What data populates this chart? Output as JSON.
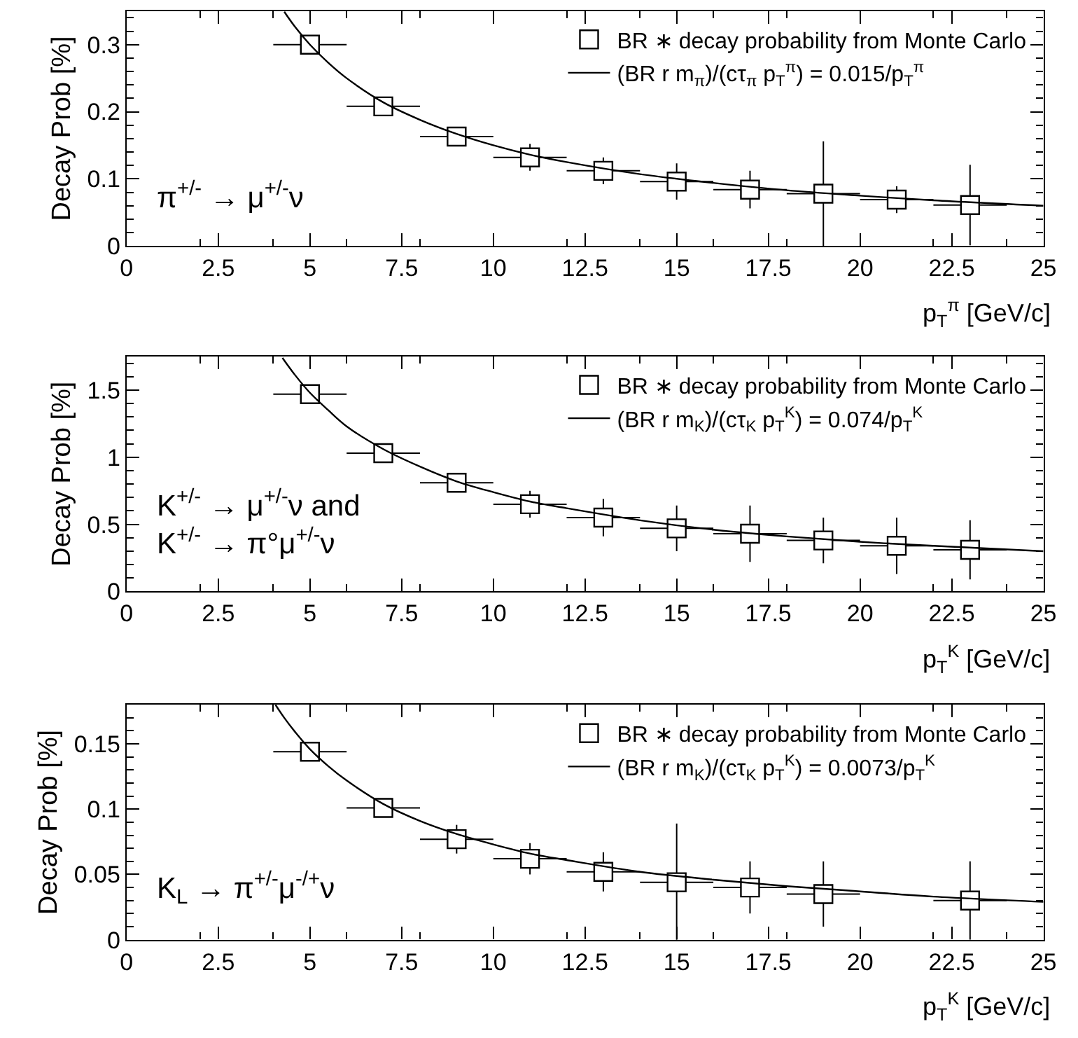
{
  "chart_data": [
    {
      "type": "scatter",
      "xlabel": "p$_{T}$$^{π}$ [GeV/c]",
      "ylabel": "Decay Prob [%]",
      "xlim": [
        0,
        25
      ],
      "xticks": [
        0,
        2.5,
        5,
        7.5,
        10,
        12.5,
        15,
        17.5,
        20,
        22.5,
        25
      ],
      "ylim": [
        0,
        0.35
      ],
      "yticks": [
        0,
        0.1,
        0.2,
        0.3
      ],
      "legend": "top right",
      "annotations": [
        "π$^{+/-}$ → μ$^{+/-}$ν"
      ],
      "series": [
        {
          "name": "BR ∗ decay probability from Monte Carlo",
          "color": "#000000",
          "marker": "square",
          "x": [
            5,
            7,
            9,
            11,
            13,
            15,
            17,
            19,
            21,
            23
          ],
          "values": [
            0.3,
            0.208,
            0.163,
            0.132,
            0.112,
            0.096,
            0.084,
            0.078,
            0.069,
            0.061
          ],
          "errors": [
            null,
            null,
            0.013,
            0.02,
            0.02,
            0.027,
            0.028,
            0.078,
            0.02,
            0.06
          ],
          "xerrors": [
            1,
            1,
            1,
            1,
            1,
            1,
            1,
            1,
            1,
            1
          ]
        },
        {
          "type": "line",
          "name": "(BR r m$_{π}$)/(cτ$_{π}$ p$_{T}$$^{π}$) = 0.015/p$_{T}$$^{π}$",
          "color": "#000000",
          "marker": "none",
          "x": [
            4.3,
            4.6,
            5,
            5.5,
            6,
            7,
            8,
            9,
            10,
            11,
            12,
            14,
            16,
            18,
            20,
            22,
            25
          ],
          "values": [
            0.349,
            0.326,
            0.3,
            0.273,
            0.25,
            0.214,
            0.188,
            0.167,
            0.15,
            0.136,
            0.125,
            0.107,
            0.094,
            0.083,
            0.075,
            0.068,
            0.06
          ]
        }
      ]
    },
    {
      "type": "scatter",
      "xlabel": "p$_{T}$$^{K}$ [GeV/c]",
      "ylabel": "Decay Prob [%]",
      "xlim": [
        0,
        25
      ],
      "xticks": [
        0,
        2.5,
        5,
        7.5,
        10,
        12.5,
        15,
        17.5,
        20,
        22.5,
        25
      ],
      "ylim": [
        0,
        1.75
      ],
      "yticks": [
        0,
        0.5,
        1,
        1.5
      ],
      "legend": "top right",
      "annotations": [
        "K$^{+/-}$ → μ$^{+/-}$ν and\nK$^{+/-}$ → π°μ$^{+/-}$ν"
      ],
      "series": [
        {
          "name": "BR ∗ decay probability from Monte Carlo",
          "color": "#000000",
          "marker": "square",
          "x": [
            5,
            7,
            9,
            11,
            13,
            15,
            17,
            19,
            21,
            23
          ],
          "values": [
            1.47,
            1.03,
            0.81,
            0.65,
            0.55,
            0.47,
            0.43,
            0.38,
            0.34,
            0.31
          ],
          "errors": [
            null,
            null,
            0.07,
            0.1,
            0.14,
            0.17,
            0.21,
            0.17,
            0.21,
            0.22
          ],
          "xerrors": [
            1,
            1,
            1,
            1,
            1,
            1,
            1,
            1,
            1,
            1
          ]
        },
        {
          "type": "line",
          "name": "(BR r m$_{K}$)/(cτ$_{K}$ p$_{T}$$^{K}$) = 0.074/p$_{T}$$^{K}$",
          "color": "#000000",
          "marker": "none",
          "x": [
            4.25,
            4.6,
            5,
            5.5,
            6,
            7,
            8,
            9,
            10,
            11,
            12,
            14,
            16,
            18,
            20,
            22,
            25
          ],
          "values": [
            1.74,
            1.61,
            1.48,
            1.35,
            1.23,
            1.06,
            0.93,
            0.82,
            0.74,
            0.67,
            0.62,
            0.53,
            0.46,
            0.41,
            0.37,
            0.34,
            0.3
          ]
        }
      ]
    },
    {
      "type": "scatter",
      "xlabel": "p$_{T}$$^{K}$ [GeV/c]",
      "ylabel": "Decay Prob [%]",
      "xlim": [
        0,
        25
      ],
      "xticks": [
        0,
        2.5,
        5,
        7.5,
        10,
        12.5,
        15,
        17.5,
        20,
        22.5,
        25
      ],
      "ylim": [
        0,
        0.18
      ],
      "yticks": [
        0,
        0.05,
        0.1,
        0.15
      ],
      "legend": "top right",
      "annotations": [
        "K$_{L}$ → π$^{+/-}$μ$^{-/+}$ν"
      ],
      "series": [
        {
          "name": "BR ∗ decay probability from Monte Carlo",
          "color": "#000000",
          "marker": "square",
          "x": [
            5,
            7,
            9,
            11,
            13,
            15,
            17,
            19,
            23
          ],
          "values": [
            0.144,
            0.101,
            0.077,
            0.062,
            0.052,
            0.044,
            0.04,
            0.035,
            0.03
          ],
          "errors": [
            null,
            null,
            0.011,
            0.012,
            0.015,
            0.045,
            0.02,
            0.025,
            0.03
          ],
          "xerrors": [
            1,
            1,
            1,
            1,
            1,
            1,
            1,
            1,
            1
          ]
        },
        {
          "type": "line",
          "name": "(BR r m$_{K}$)/(cτ$_{K}$ p$_{T}$$^{K}$) = 0.0073/p$_{T}$$^{K}$",
          "color": "#000000",
          "marker": "none",
          "x": [
            4.06,
            4.3,
            4.6,
            5,
            5.5,
            6,
            7,
            8,
            9,
            10,
            11,
            12,
            14,
            16,
            18,
            20,
            22,
            25
          ],
          "values": [
            0.18,
            0.17,
            0.159,
            0.146,
            0.133,
            0.122,
            0.104,
            0.091,
            0.081,
            0.073,
            0.066,
            0.061,
            0.052,
            0.046,
            0.041,
            0.037,
            0.033,
            0.029
          ]
        }
      ]
    }
  ]
}
